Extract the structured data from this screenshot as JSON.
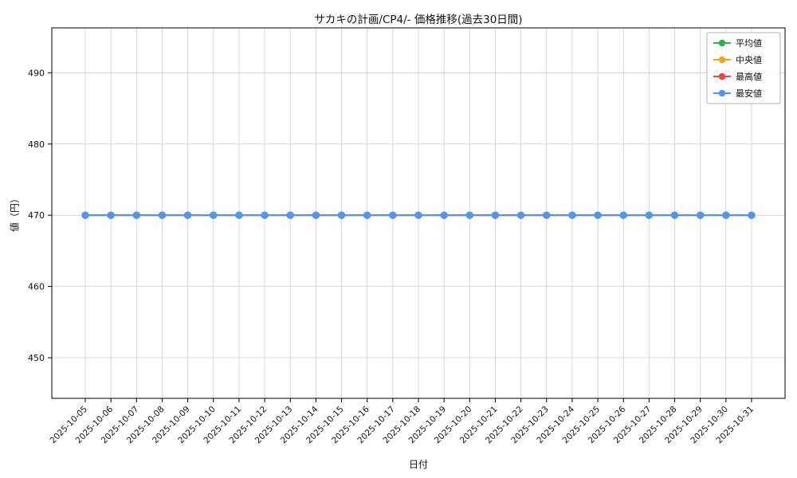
{
  "chart_data": {
    "type": "line",
    "title": "サカキの計画/CP4/- 価格推移(過去30日間)",
    "xlabel": "日付",
    "ylabel": "値（円）",
    "grid": true,
    "legend_position": "upper right",
    "ylim": [
      444.3,
      496.3
    ],
    "yticks": [
      450,
      460,
      470,
      480,
      490
    ],
    "x": [
      "2025-10-05",
      "2025-10-06",
      "2025-10-07",
      "2025-10-08",
      "2025-10-09",
      "2025-10-10",
      "2025-10-11",
      "2025-10-12",
      "2025-10-13",
      "2025-10-14",
      "2025-10-15",
      "2025-10-16",
      "2025-10-17",
      "2025-10-18",
      "2025-10-19",
      "2025-10-20",
      "2025-10-21",
      "2025-10-22",
      "2025-10-23",
      "2025-10-24",
      "2025-10-25",
      "2025-10-26",
      "2025-10-27",
      "2025-10-28",
      "2025-10-29",
      "2025-10-30",
      "2025-10-31"
    ],
    "series": [
      {
        "name": "平均値",
        "color": "#2cb34a",
        "values": [
          470,
          470,
          470,
          470,
          470,
          470,
          470,
          470,
          470,
          470,
          470,
          470,
          470,
          470,
          470,
          470,
          470,
          470,
          470,
          470,
          470,
          470,
          470,
          470,
          470,
          470,
          470
        ]
      },
      {
        "name": "中央値",
        "color": "#ffa41b",
        "values": [
          470,
          470,
          470,
          470,
          470,
          470,
          470,
          470,
          470,
          470,
          470,
          470,
          470,
          470,
          470,
          470,
          470,
          470,
          470,
          470,
          470,
          470,
          470,
          470,
          470,
          470,
          470
        ]
      },
      {
        "name": "最高値",
        "color": "#f44336",
        "values": [
          470,
          470,
          470,
          470,
          470,
          470,
          470,
          470,
          470,
          470,
          470,
          470,
          470,
          470,
          470,
          470,
          470,
          470,
          470,
          470,
          470,
          470,
          470,
          470,
          470,
          470,
          470
        ]
      },
      {
        "name": "最安値",
        "color": "#4e96f7",
        "values": [
          470,
          470,
          470,
          470,
          470,
          470,
          470,
          470,
          470,
          470,
          470,
          470,
          470,
          470,
          470,
          470,
          470,
          470,
          470,
          470,
          470,
          470,
          470,
          470,
          470,
          470,
          470
        ]
      }
    ]
  }
}
